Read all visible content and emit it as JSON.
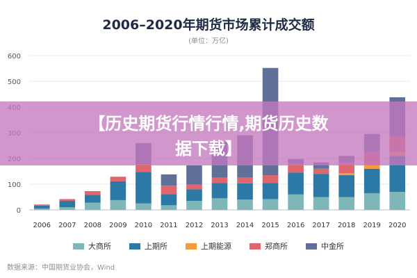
{
  "chart_data": {
    "type": "bar",
    "stacked": true,
    "title": "2006–2020年期货市场累计成交额",
    "subtitle": "(单位：万亿)",
    "xlabel": "",
    "ylabel": "",
    "categories": [
      "2006",
      "2007",
      "2008",
      "2009",
      "2010",
      "2011",
      "2012",
      "2013",
      "2014",
      "2015",
      "2016",
      "2017",
      "2018",
      "2019",
      "2020"
    ],
    "ylim": [
      0,
      600
    ],
    "yticks": [
      0,
      100,
      200,
      300,
      400,
      500,
      600
    ],
    "grid": true,
    "legend_position": "bottom",
    "series": [
      {
        "name": "大商所",
        "color": "#7fb7b8",
        "values": [
          5,
          10,
          28,
          38,
          25,
          18,
          35,
          45,
          40,
          42,
          60,
          50,
          50,
          65,
          70
        ]
      },
      {
        "name": "上期所",
        "color": "#2c79a6",
        "values": [
          12,
          25,
          30,
          73,
          123,
          43,
          45,
          60,
          63,
          63,
          85,
          90,
          85,
          95,
          140
        ]
      },
      {
        "name": "上期能源",
        "color": "#f39c3b",
        "values": [
          0,
          0,
          0,
          0,
          0,
          0,
          0,
          0,
          0,
          0,
          0,
          0,
          8,
          15,
          15
        ]
      },
      {
        "name": "郑商所",
        "color": "#e0666d",
        "values": [
          4,
          7,
          15,
          18,
          30,
          33,
          18,
          20,
          23,
          30,
          35,
          20,
          40,
          50,
          60
        ]
      },
      {
        "name": "中金所",
        "color": "#607099",
        "values": [
          0,
          0,
          0,
          0,
          82,
          44,
          75,
          140,
          164,
          417,
          18,
          25,
          27,
          70,
          153
        ]
      }
    ]
  },
  "source": "数据来源：中国期货业协会，Wind",
  "banner": {
    "line1": "【历史期货行情行情,期货历史数",
    "line2": "据下载】"
  }
}
